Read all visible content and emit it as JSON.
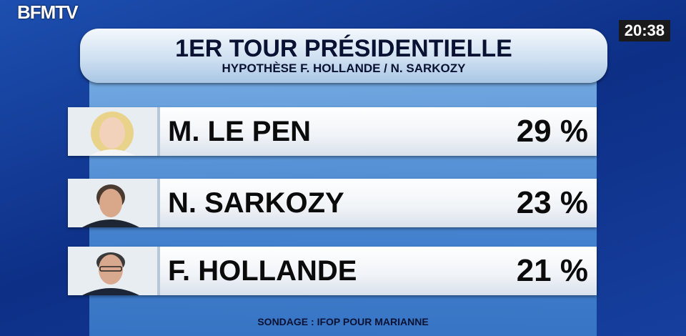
{
  "header": {
    "channel": "BFMTV",
    "clock": "20:38"
  },
  "title": "1ER TOUR PRÉSIDENTIELLE",
  "subtitle": "HYPOTHÈSE F. HOLLANDE / N. SARKOZY",
  "table": {
    "rows": [
      [
        "M. LE PEN",
        "29 %"
      ],
      [
        "N. SARKOZY",
        "23 %"
      ],
      [
        "F. HOLLANDE",
        "21 %"
      ]
    ]
  },
  "footer": "SONDAGE : IFOP POUR MARIANNE"
}
